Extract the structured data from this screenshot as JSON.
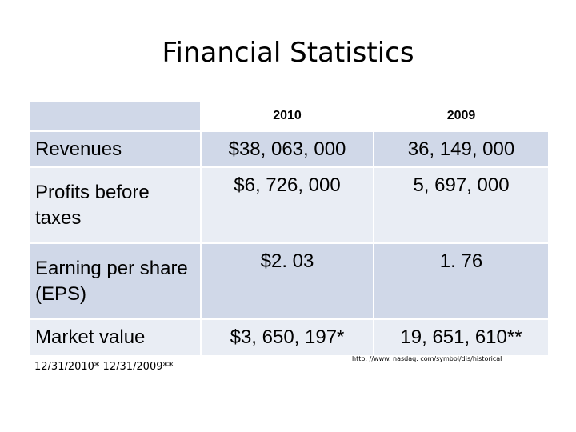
{
  "title": "Financial Statistics",
  "table": {
    "columns": [
      "2010",
      "2009"
    ],
    "rows": [
      {
        "label": "Revenues",
        "v2010": "$38, 063, 000",
        "v2009": "36, 149, 000"
      },
      {
        "label": "Profits before taxes",
        "v2010": "$6, 726, 000",
        "v2009": "5, 697, 000"
      },
      {
        "label": "Earning per share (EPS)",
        "v2010": "$2. 03",
        "v2009": "1. 76"
      },
      {
        "label": "Market value",
        "v2010": "$3, 650, 197*",
        "v2009": "19, 651, 610**"
      }
    ]
  },
  "footnote": "12/31/2010* 12/31/2009**",
  "source_link": "http: //www. nasdaq. com/symbol/dis/historical",
  "colors": {
    "row_dark": "#d0d8e8",
    "row_light": "#e9edf4"
  }
}
